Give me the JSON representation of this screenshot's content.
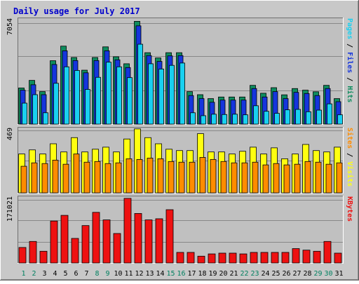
{
  "chart_data": {
    "type": "bar",
    "title": "Daily usage for July 2017",
    "categories": [
      "1",
      "2",
      "3",
      "4",
      "5",
      "6",
      "7",
      "8",
      "9",
      "10",
      "11",
      "12",
      "13",
      "14",
      "15",
      "16",
      "17",
      "18",
      "19",
      "20",
      "21",
      "22",
      "23",
      "24",
      "25",
      "26",
      "27",
      "28",
      "29",
      "30",
      "31"
    ],
    "weekend_days": [
      "1",
      "2",
      "8",
      "9",
      "15",
      "16",
      "22",
      "23",
      "29",
      "30"
    ],
    "colors": {
      "title": "#0000cc",
      "hits": "#0e8c5e",
      "files": "#1535dd",
      "pages": "#19d0f0",
      "visits": "#ffff10",
      "sites": "#ff8c00",
      "kbytes": "#ee1111",
      "weekday_label": "#000000",
      "weekend_label": "#008060",
      "plot_bg": "#c0c0c0"
    },
    "panels": [
      {
        "key": "top",
        "ymax_label": "7054",
        "ylim": [
          0,
          7054
        ],
        "right_labels": [
          {
            "text": "Pages",
            "color": "#19d0f0"
          },
          {
            "text": " / ",
            "color": "#000000"
          },
          {
            "text": "Files",
            "color": "#1535dd"
          },
          {
            "text": " / ",
            "color": "#000000"
          },
          {
            "text": "Hits",
            "color": "#0e8c5e"
          }
        ],
        "series": [
          {
            "name": "Hits",
            "values": [
              2480,
              3000,
              2230,
              4350,
              5350,
              4570,
              3700,
              4570,
              5300,
              4620,
              4140,
              7050,
              4900,
              4540,
              4900,
              4900,
              2230,
              2020,
              1750,
              1860,
              1860,
              1860,
              2660,
              2120,
              2500,
              2010,
              2440,
              2330,
              2220,
              2660,
              1750
            ]
          },
          {
            "name": "Files",
            "values": [
              2330,
              2700,
              2020,
              4090,
              5030,
              4360,
              3520,
              4360,
              5030,
              4410,
              3880,
              6740,
              4700,
              4300,
              4680,
              4700,
              1960,
              1750,
              1500,
              1650,
              1650,
              1650,
              2440,
              1860,
              2230,
              1750,
              2180,
              2100,
              1960,
              2440,
              1540
            ]
          },
          {
            "name": "Pages",
            "values": [
              1440,
              2020,
              780,
              2800,
              3930,
              3680,
              2380,
              3210,
              4250,
              3930,
              3190,
              5480,
              4140,
              3780,
              4030,
              4190,
              780,
              580,
              680,
              660,
              680,
              640,
              1260,
              880,
              740,
              980,
              1010,
              850,
              960,
              1390,
              640
            ]
          }
        ]
      },
      {
        "key": "middle",
        "ymax_label": "469",
        "ylim": [
          0,
          469
        ],
        "right_labels": [
          {
            "text": "Sites",
            "color": "#ff8c00"
          },
          {
            "text": " / ",
            "color": "#000000"
          },
          {
            "text": "Visits",
            "color": "#ffff10"
          }
        ],
        "series": [
          {
            "name": "Visits",
            "values": [
              285,
              315,
              285,
              360,
              300,
              405,
              300,
              320,
              335,
              300,
              395,
              469,
              405,
              360,
              320,
              310,
              310,
              434,
              300,
              300,
              285,
              305,
              335,
              285,
              330,
              250,
              285,
              355,
              310,
              300,
              335
            ]
          },
          {
            "name": "Sites",
            "values": [
              195,
              220,
              215,
              240,
              210,
              285,
              225,
              230,
              215,
              220,
              250,
              245,
              255,
              250,
              230,
              225,
              225,
              260,
              245,
              230,
              220,
              220,
              225,
              205,
              215,
              205,
              210,
              230,
              225,
              210,
              220
            ]
          }
        ]
      },
      {
        "key": "bottom",
        "ymax_label": "171021",
        "ylim": [
          0,
          171021
        ],
        "right_labels": [
          {
            "text": "KBytes",
            "color": "#ee1111"
          }
        ],
        "series": [
          {
            "name": "KBytes",
            "values": [
              41000,
              57000,
              31000,
              111000,
              126000,
              65000,
              99000,
              134000,
              114000,
              78000,
              171021,
              131000,
              114000,
              117000,
              141000,
              28000,
              28000,
              18000,
              24000,
              26000,
              26000,
              24000,
              28000,
              28000,
              28000,
              28000,
              38000,
              34000,
              31000,
              57000,
              26000
            ]
          }
        ]
      }
    ]
  }
}
